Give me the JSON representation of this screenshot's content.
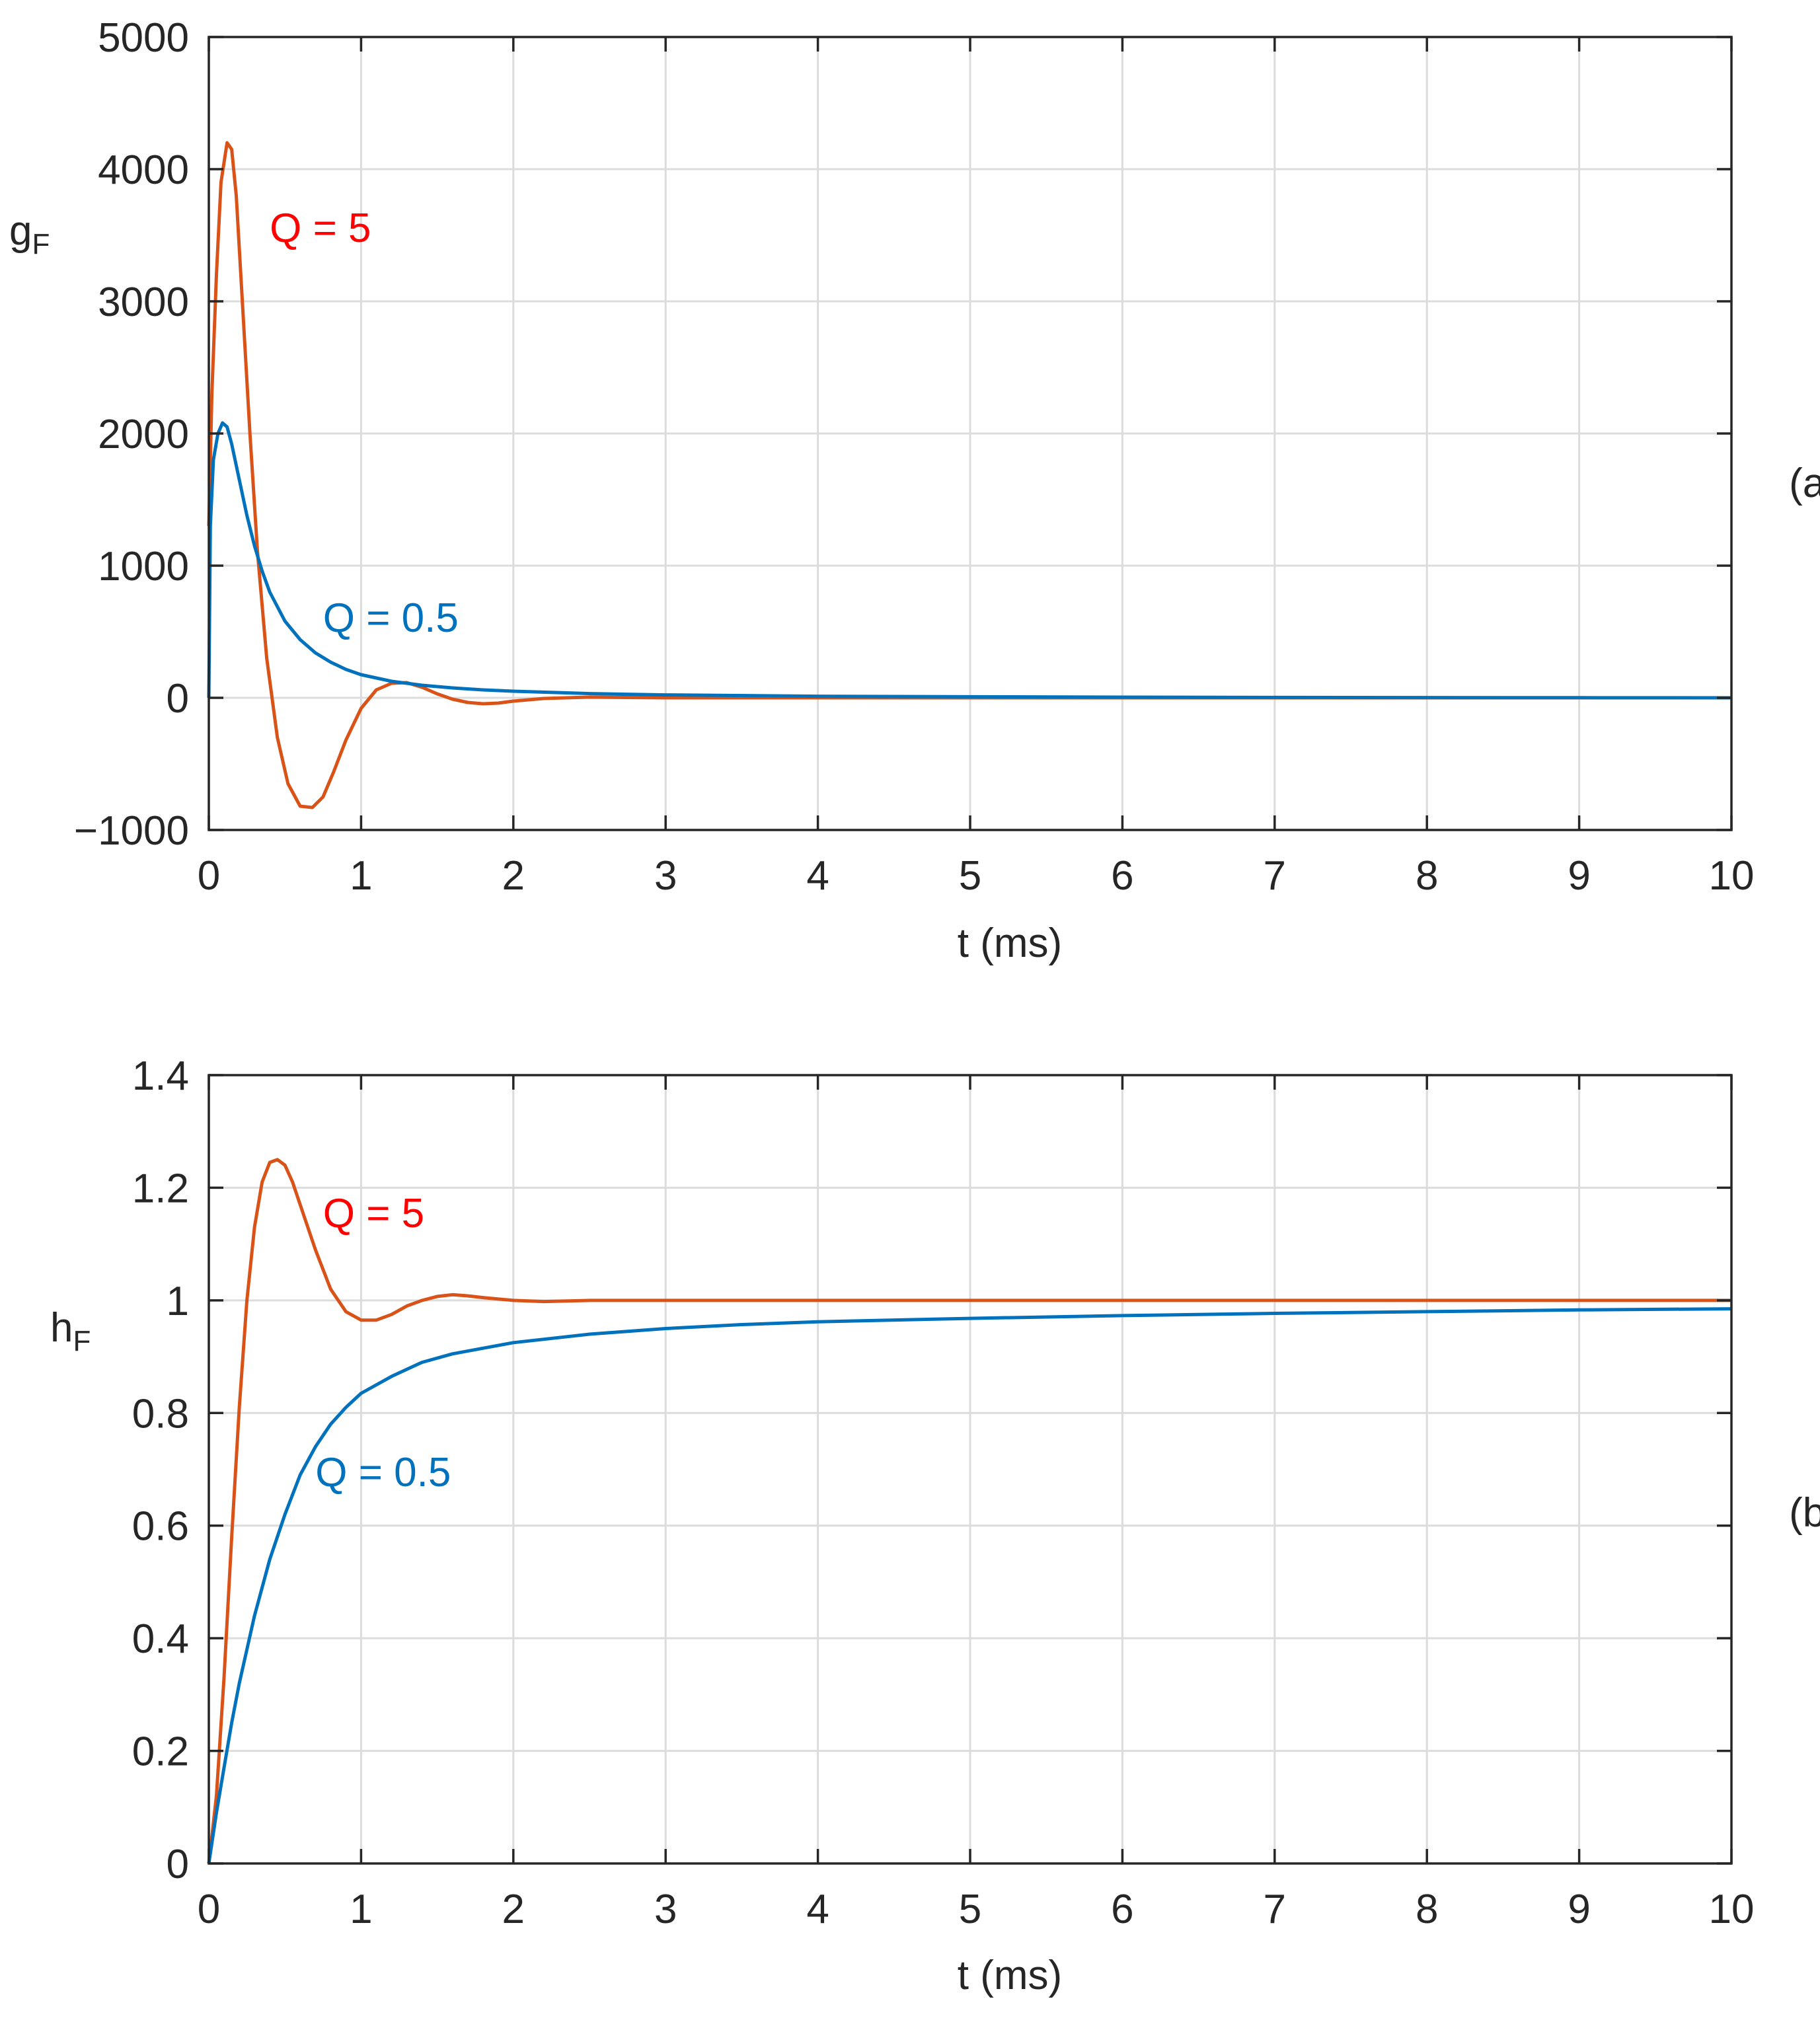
{
  "chart_data": [
    {
      "type": "line",
      "panel_label": "(a)",
      "xlabel": "t (ms)",
      "ylabel": "g",
      "ylabel_sub": "F",
      "xlim": [
        0,
        10
      ],
      "ylim": [
        -1000,
        5000
      ],
      "xticks": [
        0,
        1,
        2,
        3,
        4,
        5,
        6,
        7,
        8,
        9,
        10
      ],
      "xtick_labels": [
        "0",
        "1",
        "2",
        "3",
        "4",
        "5",
        "6",
        "7",
        "8",
        "9",
        "10"
      ],
      "yticks": [
        -1000,
        0,
        1000,
        2000,
        3000,
        4000,
        5000
      ],
      "ytick_labels": [
        "−1000",
        "0",
        "1000",
        "2000",
        "3000",
        "4000",
        "5000"
      ],
      "grid": true,
      "series": [
        {
          "name": "Q = 5",
          "color": "#D95319",
          "x": [
            0,
            0.02,
            0.05,
            0.08,
            0.12,
            0.15,
            0.18,
            0.22,
            0.27,
            0.32,
            0.38,
            0.45,
            0.52,
            0.6,
            0.68,
            0.75,
            0.82,
            0.9,
            1.0,
            1.1,
            1.2,
            1.3,
            1.4,
            1.5,
            1.6,
            1.7,
            1.8,
            1.9,
            2.0,
            2.2,
            2.5,
            3.0,
            4.0,
            5.0,
            6.0,
            7.0,
            8.0,
            9.0,
            10.0
          ],
          "y": [
            1300,
            2300,
            3200,
            3900,
            4200,
            4150,
            3800,
            3000,
            2000,
            1100,
            300,
            -300,
            -650,
            -820,
            -830,
            -750,
            -560,
            -320,
            -80,
            60,
            110,
            115,
            80,
            30,
            -10,
            -35,
            -45,
            -40,
            -25,
            -5,
            5,
            0,
            0,
            0,
            0,
            0,
            0,
            0,
            0
          ],
          "annotation": "Q = 5",
          "annotation_color": "#FF0000",
          "annotation_x": 0.4,
          "annotation_y": 3450
        },
        {
          "name": "Q = 0.5",
          "color": "#0072BD",
          "x": [
            0,
            0.01,
            0.03,
            0.06,
            0.09,
            0.12,
            0.15,
            0.2,
            0.25,
            0.3,
            0.35,
            0.4,
            0.5,
            0.6,
            0.7,
            0.8,
            0.9,
            1.0,
            1.2,
            1.4,
            1.6,
            1.8,
            2.0,
            2.5,
            3.0,
            4.0,
            5.0,
            6.0,
            7.0,
            8.0,
            9.0,
            10.0
          ],
          "y": [
            0,
            1300,
            1800,
            2000,
            2080,
            2050,
            1920,
            1650,
            1380,
            1150,
            960,
            800,
            580,
            440,
            340,
            270,
            215,
            175,
            125,
            95,
            75,
            60,
            50,
            32,
            22,
            12,
            8,
            5,
            3,
            2,
            1,
            0
          ],
          "annotation": "Q = 0.5",
          "annotation_color": "#0072BD",
          "annotation_x": 0.75,
          "annotation_y": 500
        }
      ]
    },
    {
      "type": "line",
      "panel_label": "(b)",
      "xlabel": "t (ms)",
      "ylabel": "h",
      "ylabel_sub": "F",
      "xlim": [
        0,
        10
      ],
      "ylim": [
        0,
        1.4
      ],
      "xticks": [
        0,
        1,
        2,
        3,
        4,
        5,
        6,
        7,
        8,
        9,
        10
      ],
      "xtick_labels": [
        "0",
        "1",
        "2",
        "3",
        "4",
        "5",
        "6",
        "7",
        "8",
        "9",
        "10"
      ],
      "yticks": [
        0,
        0.2,
        0.4,
        0.6,
        0.8,
        1,
        1.2,
        1.4
      ],
      "ytick_labels": [
        "0",
        "0.2",
        "0.4",
        "0.6",
        "0.8",
        "1",
        "1.2",
        "1.4"
      ],
      "grid": true,
      "series": [
        {
          "name": "Q = 5",
          "color": "#D95319",
          "x": [
            0,
            0.05,
            0.1,
            0.15,
            0.2,
            0.25,
            0.3,
            0.35,
            0.4,
            0.45,
            0.5,
            0.55,
            0.6,
            0.7,
            0.8,
            0.9,
            1.0,
            1.1,
            1.2,
            1.3,
            1.4,
            1.5,
            1.6,
            1.7,
            1.8,
            2.0,
            2.2,
            2.5,
            3.0,
            4.0,
            5.0,
            6.0,
            7.0,
            8.0,
            9.0,
            10.0
          ],
          "y": [
            0,
            0.12,
            0.33,
            0.58,
            0.81,
            1.0,
            1.13,
            1.21,
            1.245,
            1.25,
            1.24,
            1.21,
            1.17,
            1.09,
            1.02,
            0.98,
            0.965,
            0.965,
            0.975,
            0.99,
            1.0,
            1.007,
            1.01,
            1.008,
            1.005,
            1.0,
            0.998,
            1.0,
            1.0,
            1.0,
            1.0,
            1.0,
            1.0,
            1.0,
            1.0,
            1.0
          ],
          "annotation": "Q = 5",
          "annotation_color": "#FF0000",
          "annotation_x": 0.75,
          "annotation_y": 1.13
        },
        {
          "name": "Q = 0.5",
          "color": "#0072BD",
          "x": [
            0,
            0.05,
            0.1,
            0.15,
            0.2,
            0.3,
            0.4,
            0.5,
            0.6,
            0.7,
            0.8,
            0.9,
            1.0,
            1.2,
            1.4,
            1.6,
            1.8,
            2.0,
            2.5,
            3.0,
            3.5,
            4.0,
            5.0,
            6.0,
            7.0,
            8.0,
            9.0,
            10.0
          ],
          "y": [
            0,
            0.09,
            0.17,
            0.25,
            0.32,
            0.44,
            0.54,
            0.62,
            0.69,
            0.74,
            0.78,
            0.81,
            0.835,
            0.865,
            0.89,
            0.905,
            0.915,
            0.925,
            0.94,
            0.95,
            0.957,
            0.962,
            0.968,
            0.973,
            0.977,
            0.98,
            0.983,
            0.985
          ],
          "annotation": "Q = 0.5",
          "annotation_color": "#0072BD",
          "annotation_x": 0.7,
          "annotation_y": 0.67
        }
      ]
    }
  ]
}
